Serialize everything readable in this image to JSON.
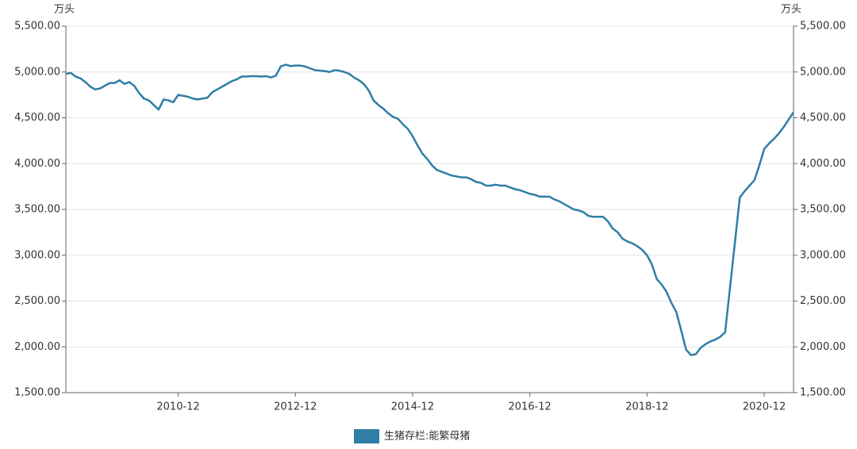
{
  "chart_data": {
    "type": "line",
    "y_label": "万头",
    "y2_label": "万头",
    "x": [
      "2009-01",
      "2009-02",
      "2009-03",
      "2009-04",
      "2009-05",
      "2009-06",
      "2009-07",
      "2009-08",
      "2009-09",
      "2009-10",
      "2009-11",
      "2009-12",
      "2010-01",
      "2010-02",
      "2010-03",
      "2010-04",
      "2010-05",
      "2010-06",
      "2010-07",
      "2010-08",
      "2010-09",
      "2010-10",
      "2010-11",
      "2010-12",
      "2011-01",
      "2011-02",
      "2011-03",
      "2011-04",
      "2011-05",
      "2011-06",
      "2011-07",
      "2011-08",
      "2011-09",
      "2011-10",
      "2011-11",
      "2011-12",
      "2012-01",
      "2012-02",
      "2012-03",
      "2012-04",
      "2012-05",
      "2012-06",
      "2012-07",
      "2012-08",
      "2012-09",
      "2012-10",
      "2012-11",
      "2012-12",
      "2013-01",
      "2013-02",
      "2013-03",
      "2013-04",
      "2013-05",
      "2013-06",
      "2013-07",
      "2013-08",
      "2013-09",
      "2013-10",
      "2013-11",
      "2013-12",
      "2014-01",
      "2014-02",
      "2014-03",
      "2014-04",
      "2014-05",
      "2014-06",
      "2014-07",
      "2014-08",
      "2014-09",
      "2014-10",
      "2014-11",
      "2014-12",
      "2015-01",
      "2015-02",
      "2015-03",
      "2015-04",
      "2015-05",
      "2015-06",
      "2015-07",
      "2015-08",
      "2015-09",
      "2015-10",
      "2015-11",
      "2015-12",
      "2016-01",
      "2016-02",
      "2016-03",
      "2016-04",
      "2016-05",
      "2016-06",
      "2016-07",
      "2016-08",
      "2016-09",
      "2016-10",
      "2016-11",
      "2016-12",
      "2017-01",
      "2017-02",
      "2017-03",
      "2017-04",
      "2017-05",
      "2017-06",
      "2017-07",
      "2017-08",
      "2017-09",
      "2017-10",
      "2017-11",
      "2017-12",
      "2018-01",
      "2018-02",
      "2018-03",
      "2018-04",
      "2018-05",
      "2018-06",
      "2018-07",
      "2018-08",
      "2018-09",
      "2018-10",
      "2018-11",
      "2018-12",
      "2019-01",
      "2019-02",
      "2019-03",
      "2019-04",
      "2019-05",
      "2019-06",
      "2019-07",
      "2019-08",
      "2019-09",
      "2019-10",
      "2019-11",
      "2019-12",
      "2020-01",
      "2020-02",
      "2020-03",
      "2020-04",
      "2020-05",
      "2020-06",
      "2020-07",
      "2020-08",
      "2020-09",
      "2020-10",
      "2020-11",
      "2020-12",
      "2021-01",
      "2021-02",
      "2021-03",
      "2021-04",
      "2021-05",
      "2021-06"
    ],
    "series": [
      {
        "name": "生猪存栏:能繁母猪",
        "color": "#2e7ea6",
        "values": [
          4980,
          4990,
          4950,
          4930,
          4890,
          4840,
          4810,
          4820,
          4850,
          4880,
          4880,
          4910,
          4870,
          4890,
          4850,
          4770,
          4710,
          4690,
          4640,
          4590,
          4700,
          4690,
          4670,
          4750,
          4740,
          4730,
          4710,
          4700,
          4710,
          4720,
          4780,
          4810,
          4840,
          4870,
          4900,
          4920,
          4950,
          4950,
          4955,
          4955,
          4950,
          4955,
          4940,
          4960,
          5060,
          5080,
          5065,
          5070,
          5070,
          5060,
          5040,
          5020,
          5015,
          5010,
          5000,
          5020,
          5015,
          5000,
          4980,
          4940,
          4910,
          4870,
          4800,
          4690,
          4640,
          4600,
          4550,
          4510,
          4490,
          4430,
          4380,
          4300,
          4200,
          4110,
          4050,
          3980,
          3930,
          3910,
          3890,
          3870,
          3860,
          3850,
          3850,
          3830,
          3800,
          3790,
          3760,
          3760,
          3770,
          3760,
          3760,
          3740,
          3720,
          3710,
          3690,
          3670,
          3660,
          3640,
          3640,
          3640,
          3610,
          3590,
          3560,
          3530,
          3500,
          3490,
          3470,
          3430,
          3420,
          3420,
          3420,
          3370,
          3290,
          3250,
          3180,
          3150,
          3130,
          3100,
          3060,
          3000,
          2900,
          2740,
          2680,
          2600,
          2480,
          2380,
          2180,
          1970,
          1910,
          1920,
          1990,
          2030,
          2060,
          2080,
          2110,
          2160,
          2650,
          3140,
          3630,
          3700,
          3760,
          3820,
          3980,
          4160,
          4220,
          4270,
          4330,
          4400,
          4480,
          4560
        ]
      }
    ],
    "xlim": [
      "2009-01",
      "2021-06"
    ],
    "xticks": [
      "2010-12",
      "2012-12",
      "2014-12",
      "2016-12",
      "2018-12",
      "2020-12"
    ],
    "ylim": [
      1500,
      5500
    ],
    "yticks": [
      {
        "value": 1500,
        "label": "1,500.00"
      },
      {
        "value": 2000,
        "label": "2,000.00"
      },
      {
        "value": 2500,
        "label": "2,500.00"
      },
      {
        "value": 3000,
        "label": "3,000.00"
      },
      {
        "value": 3500,
        "label": "3,500.00"
      },
      {
        "value": 4000,
        "label": "4,000.00"
      },
      {
        "value": 4500,
        "label": "4,500.00"
      },
      {
        "value": 5000,
        "label": "5,000.00"
      },
      {
        "value": 5500,
        "label": "5,500.00"
      }
    ],
    "y2lim": [
      1500,
      5500
    ],
    "y2ticks": [
      {
        "value": 1500,
        "label": "1,500.00"
      },
      {
        "value": 2000,
        "label": "2,000.00"
      },
      {
        "value": 2500,
        "label": "2,500.00"
      },
      {
        "value": 3000,
        "label": "3,000.00"
      },
      {
        "value": 3500,
        "label": "3,500.00"
      },
      {
        "value": 4000,
        "label": "4,000.00"
      },
      {
        "value": 4500,
        "label": "4,500.00"
      },
      {
        "value": 5000,
        "label": "5,000.00"
      },
      {
        "value": 5500,
        "label": "5,500.00"
      }
    ],
    "grid": true,
    "legend": "bottom"
  }
}
